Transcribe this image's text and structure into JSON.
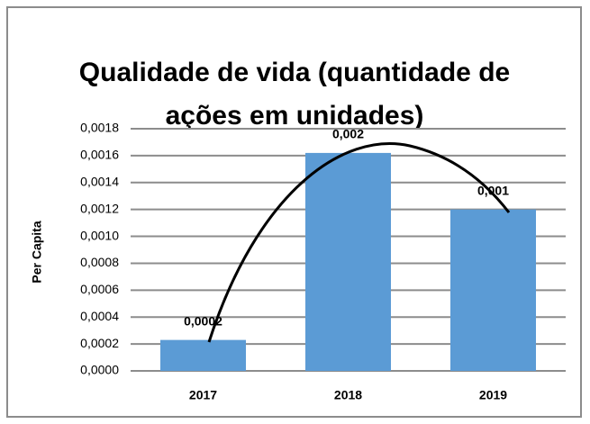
{
  "chart_data": {
    "type": "bar",
    "title": [
      "Qualidade de vida (quantidade de",
      "ações em unidades)"
    ],
    "y_label": "Per Capita",
    "categories": [
      "2017",
      "2018",
      "2019"
    ],
    "values": [
      0.00023,
      0.00162,
      0.0012
    ],
    "value_labels": [
      "0,0002",
      "0,002",
      "0,001"
    ],
    "color": "#5b9bd5",
    "ylim": [
      0,
      0.0018
    ],
    "yticks": [
      {
        "value": 0,
        "label": "0,0000"
      },
      {
        "value": 0.0002,
        "label": "0,0002"
      },
      {
        "value": 0.0004,
        "label": "0,0004"
      },
      {
        "value": 0.0006,
        "label": "0,0006"
      },
      {
        "value": 0.0008,
        "label": "0,0008"
      },
      {
        "value": 0.001,
        "label": "0,0010"
      },
      {
        "value": 0.0012,
        "label": "0,0012"
      },
      {
        "value": 0.0014,
        "label": "0,0014"
      },
      {
        "value": 0.0016,
        "label": "0,0016"
      },
      {
        "value": 0.0018,
        "label": "0,0018"
      }
    ],
    "grid": true
  }
}
